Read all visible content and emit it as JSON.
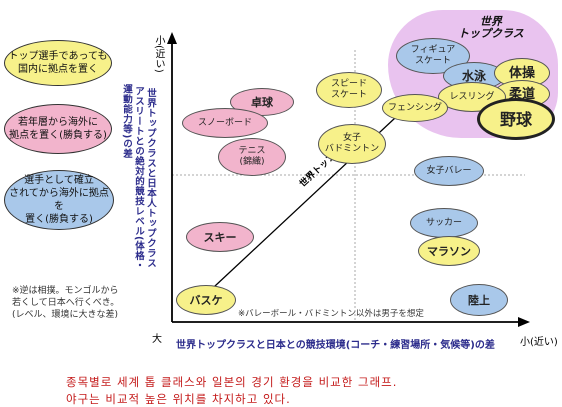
{
  "legend": {
    "yellow": "トップ選手であっても\n国内に拠点を置く",
    "pink": "若年層から海外に\n拠点を置く(勝負する)",
    "blue": "選手として確立\nされてから海外に拠点を\n置く(勝負する)"
  },
  "note": "※逆は相撲。モンゴルから\n若くして日本へ行くべき。\n(レベル、環境に大きな差)",
  "axes": {
    "y_small": "小(近い)",
    "y_large": "大",
    "x_small": "小(近い)",
    "y_label_1": "世界トップクラスと日本人トップクラス",
    "y_label_2": "アスリートとの絶対的競技レベル(体格・",
    "y_label_3": "運動能力等)の差",
    "x_label": "世界トップクラスと日本との競技環境(コーチ・練習場所・気候等)の差",
    "diagonal": "世界トップとの差",
    "footnote": "※バレーボール・バドミントン以外は男子を想定"
  },
  "top_class_label": "世界\nトップクラス",
  "sports": [
    {
      "name": "フィギュア\nスケート",
      "type": "blue"
    },
    {
      "name": "水泳",
      "type": "blue"
    },
    {
      "name": "体操",
      "type": "yellow"
    },
    {
      "name": "柔道",
      "type": "yellow"
    },
    {
      "name": "レスリング",
      "type": "yellow"
    },
    {
      "name": "野球",
      "type": "yellow"
    },
    {
      "name": "スピード\nスケート",
      "type": "yellow"
    },
    {
      "name": "フェンシング",
      "type": "yellow"
    },
    {
      "name": "卓球",
      "type": "pink"
    },
    {
      "name": "スノーボード",
      "type": "pink"
    },
    {
      "name": "テニス\n(錦織)",
      "type": "pink"
    },
    {
      "name": "女子\nバドミントン",
      "type": "yellow"
    },
    {
      "name": "女子バレー",
      "type": "blue"
    },
    {
      "name": "スキー",
      "type": "pink"
    },
    {
      "name": "サッカー",
      "type": "blue"
    },
    {
      "name": "マラソン",
      "type": "yellow"
    },
    {
      "name": "陸上",
      "type": "blue"
    },
    {
      "name": "バスケ",
      "type": "yellow"
    }
  ],
  "colors": {
    "yellow": "#f7f18a",
    "pink": "#f2b4cc",
    "blue": "#a9c8ea",
    "highlight": "#e9c3ef"
  },
  "caption_line1": "종목별로 세계 톱 클래스와 일본의 경기 환경을 비교한 그래프.",
  "caption_line2": "야구는 비교적 높은 위치를 차지하고 있다."
}
